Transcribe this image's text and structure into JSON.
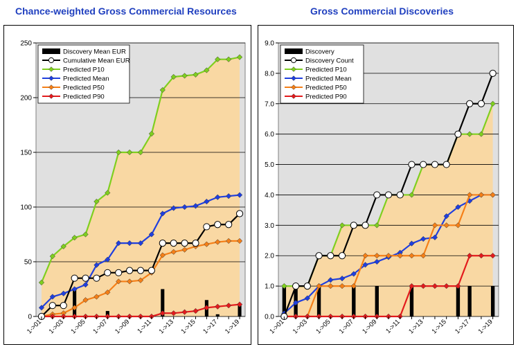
{
  "colors": {
    "panel_bg": "#e0e0e0",
    "area_fill": "#f9d8a3",
    "bars": "#000000",
    "p10": "#7fcf1f",
    "mean": "#1f3fdf",
    "p50": "#f57f17",
    "p90": "#e31a1c",
    "cumulative": "#000000",
    "title": "#1f3fbf"
  },
  "chart_data": [
    {
      "type": "line",
      "title": "Chance-weighted Gross Commercial Resources",
      "categories": [
        "1->01",
        "1->02",
        "1->03",
        "1->04",
        "1->05",
        "1->06",
        "1->07",
        "1->08",
        "1->09",
        "1->10",
        "1->11",
        "1->12",
        "1->13",
        "1->14",
        "1->15",
        "1->16",
        "1->17",
        "1->18",
        "1->19"
      ],
      "tick_labels": [
        "1->01",
        "1->03",
        "1->05",
        "1->07",
        "1->09",
        "1->11",
        "1->13",
        "1->15",
        "1->17",
        "1->19"
      ],
      "ylim": [
        0,
        250
      ],
      "yticks": [
        "0",
        "50",
        "100",
        "150",
        "200",
        "250"
      ],
      "grid": true,
      "legend_position": "top-left",
      "bars": {
        "name": "Discovery Mean EUR",
        "values": [
          0,
          0,
          0,
          25,
          0,
          0,
          5,
          0,
          0,
          0,
          0,
          25,
          0,
          0,
          0,
          15,
          2,
          0,
          10
        ]
      },
      "series": [
        {
          "name": "Cumulative Mean EUR",
          "key": "cumulative",
          "values": [
            0,
            10,
            10,
            35,
            35,
            35,
            40,
            40,
            42,
            42,
            42,
            67,
            67,
            67,
            67,
            82,
            84,
            84,
            94
          ]
        },
        {
          "name": "Predicted P10",
          "key": "p10",
          "values": [
            31,
            55,
            64,
            72,
            75,
            105,
            113,
            150,
            150,
            150,
            167,
            207,
            219,
            220,
            221,
            225,
            235,
            235,
            237
          ]
        },
        {
          "name": "Predicted Mean",
          "key": "mean",
          "values": [
            8,
            18,
            21,
            25,
            29,
            47,
            52,
            67,
            67,
            67,
            75,
            94,
            99,
            100,
            101,
            105,
            109,
            110,
            111
          ]
        },
        {
          "name": "Predicted P50",
          "key": "p50",
          "values": [
            0,
            2,
            3,
            8,
            15,
            18,
            22,
            32,
            32,
            33,
            40,
            56,
            59,
            61,
            64,
            66,
            68,
            69,
            69
          ]
        },
        {
          "name": "Predicted P90",
          "key": "p90",
          "values": [
            0,
            0,
            0,
            0,
            0,
            0,
            0,
            0,
            0,
            0,
            0,
            3,
            3,
            4,
            5,
            8,
            9,
            10,
            11
          ]
        }
      ]
    },
    {
      "type": "line",
      "title": "Gross Commercial Discoveries",
      "categories": [
        "1->01",
        "1->02",
        "1->03",
        "1->04",
        "1->05",
        "1->06",
        "1->07",
        "1->08",
        "1->09",
        "1->10",
        "1->11",
        "1->12",
        "1->13",
        "1->14",
        "1->15",
        "1->16",
        "1->17",
        "1->18",
        "1->19"
      ],
      "tick_labels": [
        "1->01",
        "1->03",
        "1->05",
        "1->07",
        "1->09",
        "1->11",
        "1->13",
        "1->15",
        "1->17",
        "1->19"
      ],
      "ylim": [
        0,
        9
      ],
      "yticks": [
        "0.0",
        "1.0",
        "2.0",
        "3.0",
        "4.0",
        "5.0",
        "6.0",
        "7.0",
        "8.0",
        "9.0"
      ],
      "grid": true,
      "legend_position": "top-left",
      "bars": {
        "name": "Discovery",
        "values": [
          1,
          1,
          0,
          1,
          0,
          0,
          1,
          0,
          1,
          0,
          0,
          1,
          0,
          0,
          0,
          1,
          1,
          0,
          1
        ]
      },
      "series": [
        {
          "name": "Discovery Count",
          "key": "cumulative",
          "values": [
            0,
            1,
            1,
            2,
            2,
            2,
            3,
            3,
            4,
            4,
            4,
            5,
            5,
            5,
            5,
            6,
            7,
            7,
            8
          ]
        },
        {
          "name": "Predicted P10",
          "key": "p10",
          "values": [
            1,
            1,
            1,
            2,
            2,
            3,
            3,
            3,
            3,
            4,
            4,
            4,
            5,
            5,
            5,
            6,
            6,
            6,
            7
          ]
        },
        {
          "name": "Predicted Mean",
          "key": "mean",
          "values": [
            0.1,
            0.45,
            0.6,
            1.0,
            1.2,
            1.25,
            1.4,
            1.7,
            1.8,
            1.95,
            2.1,
            2.4,
            2.55,
            2.6,
            3.3,
            3.6,
            3.8,
            4.0,
            4.0
          ]
        },
        {
          "name": "Predicted P50",
          "key": "p50",
          "values": [
            0,
            0,
            0,
            1,
            1,
            1,
            1,
            2,
            2,
            2,
            2,
            2,
            2,
            3,
            3,
            3,
            4,
            4,
            4
          ]
        },
        {
          "name": "Predicted P90",
          "key": "p90",
          "values": [
            0,
            0,
            0,
            0,
            0,
            0,
            0,
            0,
            0,
            0,
            0,
            1,
            1,
            1,
            1,
            1,
            2,
            2,
            2
          ]
        }
      ]
    }
  ]
}
